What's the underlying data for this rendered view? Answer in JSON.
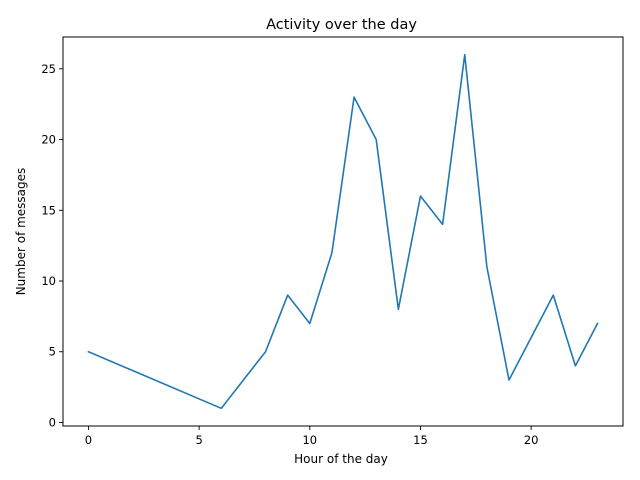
{
  "chart_data": {
    "type": "line",
    "title": "Activity over the day",
    "xlabel": "Hour of the day",
    "ylabel": "Number of messages",
    "x": [
      0,
      6,
      8,
      9,
      10,
      11,
      12,
      13,
      14,
      15,
      16,
      17,
      18,
      19,
      21,
      22,
      23
    ],
    "series": [
      {
        "values": [
          5,
          1,
          5,
          9,
          7,
          12,
          23,
          20,
          8,
          16,
          14,
          26,
          11,
          3,
          9,
          4,
          7
        ],
        "color": "#1f77b4"
      }
    ],
    "xlim": [
      -1.15,
      24.15
    ],
    "ylim": [
      -0.25,
      27.25
    ],
    "xticks": [
      0,
      5,
      10,
      15,
      20
    ],
    "yticks": [
      0,
      5,
      10,
      15,
      20,
      25
    ],
    "grid": false,
    "legend": "none"
  }
}
